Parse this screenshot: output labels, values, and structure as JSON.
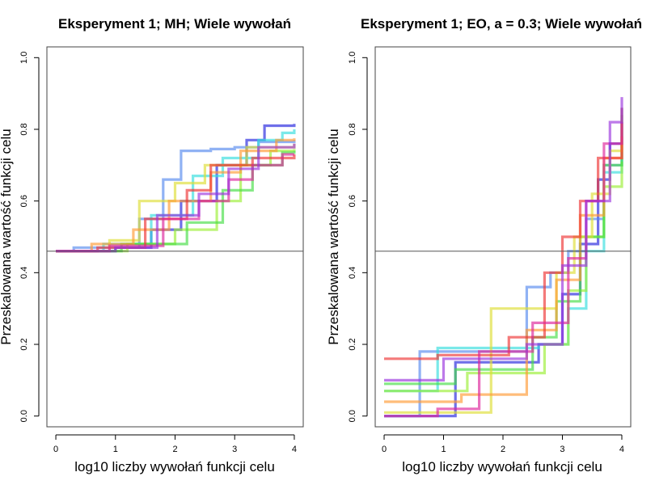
{
  "chart_data": [
    {
      "type": "line",
      "title": "Eksperyment 1; MH; Wiele wywołań",
      "xlabel": "log10 liczby wywołań funkcji celu",
      "ylabel": "Przeskalowana wartość funkcji celu",
      "xlim": [
        -0.15,
        4.15
      ],
      "ylim": [
        -0.03,
        1.03
      ],
      "xticks": [
        "0",
        "1",
        "2",
        "3",
        "4"
      ],
      "yticks": [
        "0.0",
        "0.2",
        "0.4",
        "0.6",
        "0.8",
        "1.0"
      ],
      "hline": 0.46,
      "grid": false,
      "legend": "none",
      "series": [
        {
          "color": "#2222dd",
          "points": [
            [
              0,
              0.46
            ],
            [
              1,
              0.47
            ],
            [
              1.6,
              0.52
            ],
            [
              2.1,
              0.6
            ],
            [
              2.7,
              0.7
            ],
            [
              3.2,
              0.77
            ],
            [
              3.5,
              0.81
            ],
            [
              4,
              0.815
            ]
          ]
        },
        {
          "color": "#5588ee",
          "points": [
            [
              0,
              0.46
            ],
            [
              0.3,
              0.47
            ],
            [
              1.4,
              0.55
            ],
            [
              1.8,
              0.66
            ],
            [
              2.1,
              0.74
            ],
            [
              2.6,
              0.745
            ],
            [
              3.0,
              0.75
            ],
            [
              3.4,
              0.765
            ],
            [
              4,
              0.77
            ]
          ]
        },
        {
          "color": "#33dddd",
          "points": [
            [
              0,
              0.46
            ],
            [
              0.8,
              0.48
            ],
            [
              1.6,
              0.56
            ],
            [
              2.3,
              0.67
            ],
            [
              2.8,
              0.72
            ],
            [
              3.4,
              0.77
            ],
            [
              3.8,
              0.79
            ],
            [
              4,
              0.8
            ]
          ]
        },
        {
          "color": "#99ee33",
          "points": [
            [
              0,
              0.46
            ],
            [
              1.2,
              0.48
            ],
            [
              2.0,
              0.52
            ],
            [
              2.7,
              0.6
            ],
            [
              3.1,
              0.7
            ],
            [
              3.6,
              0.74
            ],
            [
              4,
              0.745
            ]
          ]
        },
        {
          "color": "#44dd44",
          "points": [
            [
              0,
              0.46
            ],
            [
              1.1,
              0.48
            ],
            [
              2.2,
              0.54
            ],
            [
              2.8,
              0.63
            ],
            [
              3.3,
              0.7
            ],
            [
              3.8,
              0.735
            ],
            [
              4,
              0.74
            ]
          ]
        },
        {
          "color": "#dddd33",
          "points": [
            [
              0,
              0.46
            ],
            [
              0.9,
              0.49
            ],
            [
              1.4,
              0.6
            ],
            [
              2.0,
              0.65
            ],
            [
              2.5,
              0.7
            ],
            [
              3.2,
              0.75
            ],
            [
              4,
              0.76
            ]
          ]
        },
        {
          "color": "#ff9933",
          "points": [
            [
              0,
              0.46
            ],
            [
              0.6,
              0.48
            ],
            [
              1.3,
              0.52
            ],
            [
              1.9,
              0.6
            ],
            [
              2.6,
              0.68
            ],
            [
              3.1,
              0.74
            ],
            [
              3.7,
              0.77
            ],
            [
              4,
              0.775
            ]
          ]
        },
        {
          "color": "#ee3333",
          "points": [
            [
              0,
              0.46
            ],
            [
              0.7,
              0.47
            ],
            [
              1.5,
              0.55
            ],
            [
              2.2,
              0.63
            ],
            [
              2.6,
              0.7
            ],
            [
              3.3,
              0.72
            ],
            [
              4,
              0.73
            ]
          ]
        },
        {
          "color": "#dd2299",
          "points": [
            [
              0,
              0.46
            ],
            [
              0.9,
              0.475
            ],
            [
              1.8,
              0.55
            ],
            [
              2.4,
              0.6
            ],
            [
              2.9,
              0.66
            ],
            [
              3.3,
              0.7
            ],
            [
              3.8,
              0.73
            ],
            [
              4,
              0.73
            ]
          ]
        },
        {
          "color": "#9933dd",
          "points": [
            [
              0,
              0.46
            ],
            [
              1.0,
              0.47
            ],
            [
              1.7,
              0.56
            ],
            [
              2.4,
              0.62
            ],
            [
              2.9,
              0.69
            ],
            [
              3.4,
              0.75
            ],
            [
              4,
              0.76
            ]
          ]
        }
      ]
    },
    {
      "type": "line",
      "title": "Eksperyment 1; EO, a = 0.3; Wiele wywołań",
      "xlabel": "log10 liczby wywołań funkcji celu",
      "ylabel": "Przeskalowana wartość funkcji celu",
      "xlim": [
        -0.15,
        4.15
      ],
      "ylim": [
        -0.03,
        1.03
      ],
      "xticks": [
        "0",
        "1",
        "2",
        "3",
        "4"
      ],
      "yticks": [
        "0.0",
        "0.2",
        "0.4",
        "0.6",
        "0.8",
        "1.0"
      ],
      "hline": 0.46,
      "grid": false,
      "legend": "none",
      "series": [
        {
          "color": "#2222dd",
          "points": [
            [
              0,
              0.0
            ],
            [
              1.2,
              0.15
            ],
            [
              2.6,
              0.2
            ],
            [
              3.0,
              0.34
            ],
            [
              3.3,
              0.48
            ],
            [
              3.6,
              0.66
            ],
            [
              3.8,
              0.76
            ],
            [
              4,
              0.82
            ]
          ]
        },
        {
          "color": "#5588ee",
          "points": [
            [
              0,
              0.0
            ],
            [
              0.6,
              0.18
            ],
            [
              2.4,
              0.36
            ],
            [
              2.8,
              0.4
            ],
            [
              3.1,
              0.46
            ],
            [
              3.4,
              0.55
            ],
            [
              3.7,
              0.7
            ],
            [
              4,
              0.78
            ]
          ]
        },
        {
          "color": "#33dddd",
          "points": [
            [
              0,
              0.07
            ],
            [
              0.9,
              0.19
            ],
            [
              2.6,
              0.2
            ],
            [
              3.1,
              0.3
            ],
            [
              3.4,
              0.46
            ],
            [
              3.7,
              0.68
            ],
            [
              4,
              0.86
            ]
          ]
        },
        {
          "color": "#99ee33",
          "points": [
            [
              0,
              0.07
            ],
            [
              1.4,
              0.12
            ],
            [
              2.7,
              0.2
            ],
            [
              3.1,
              0.35
            ],
            [
              3.4,
              0.5
            ],
            [
              3.7,
              0.64
            ],
            [
              4,
              0.71
            ]
          ]
        },
        {
          "color": "#44dd44",
          "points": [
            [
              0,
              0.09
            ],
            [
              1.2,
              0.13
            ],
            [
              2.5,
              0.22
            ],
            [
              2.9,
              0.32
            ],
            [
              3.3,
              0.5
            ],
            [
              3.7,
              0.7
            ],
            [
              4,
              0.84
            ]
          ]
        },
        {
          "color": "#dddd33",
          "points": [
            [
              0,
              0.01
            ],
            [
              1.8,
              0.3
            ],
            [
              2.5,
              0.3
            ],
            [
              2.9,
              0.4
            ],
            [
              3.2,
              0.5
            ],
            [
              3.5,
              0.62
            ],
            [
              3.8,
              0.74
            ],
            [
              4,
              0.76
            ]
          ]
        },
        {
          "color": "#ff9933",
          "points": [
            [
              0,
              0.04
            ],
            [
              1.3,
              0.06
            ],
            [
              2.4,
              0.24
            ],
            [
              2.9,
              0.38
            ],
            [
              3.3,
              0.56
            ],
            [
              3.7,
              0.72
            ],
            [
              4,
              0.78
            ]
          ]
        },
        {
          "color": "#ee3333",
          "points": [
            [
              0,
              0.16
            ],
            [
              0.9,
              0.17
            ],
            [
              2.1,
              0.22
            ],
            [
              2.7,
              0.4
            ],
            [
              3.0,
              0.5
            ],
            [
              3.3,
              0.6
            ],
            [
              3.6,
              0.72
            ],
            [
              4,
              0.86
            ]
          ]
        },
        {
          "color": "#dd2299",
          "points": [
            [
              0,
              0.0
            ],
            [
              0.9,
              0.02
            ],
            [
              1.6,
              0.18
            ],
            [
              2.5,
              0.26
            ],
            [
              3.1,
              0.44
            ],
            [
              3.4,
              0.6
            ],
            [
              3.7,
              0.76
            ],
            [
              4,
              0.82
            ]
          ]
        },
        {
          "color": "#9933dd",
          "points": [
            [
              0,
              0.1
            ],
            [
              1.0,
              0.16
            ],
            [
              2.4,
              0.2
            ],
            [
              3.0,
              0.42
            ],
            [
              3.4,
              0.6
            ],
            [
              3.8,
              0.82
            ],
            [
              4,
              0.89
            ]
          ]
        }
      ]
    }
  ]
}
